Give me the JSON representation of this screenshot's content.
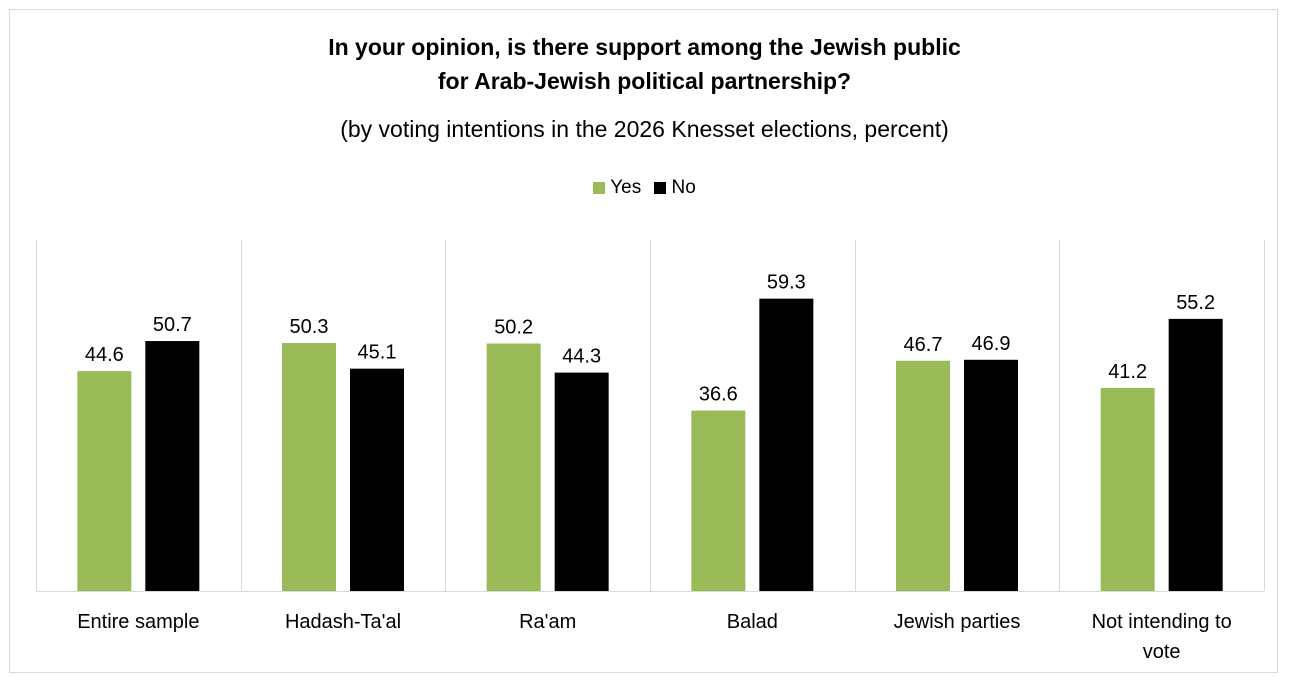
{
  "title_lines": [
    "In your opinion, is there support among the Jewish public",
    "for Arab-Jewish political partnership?"
  ],
  "subtitle": "(by voting intentions in the 2026 Knesset elections, percent)",
  "legend": [
    {
      "label": "Yes",
      "color": "#9bbb59"
    },
    {
      "label": "No",
      "color": "#000000"
    }
  ],
  "chart_data": {
    "type": "bar",
    "title": "In your opinion, is there support among the Jewish public for Arab-Jewish political partnership?",
    "subtitle": "(by voting intentions in the 2026 Knesset elections, percent)",
    "categories": [
      "Entire sample",
      "Hadash-Ta'al",
      "Ra'am",
      "Balad",
      "Jewish parties",
      "Not intending to vote"
    ],
    "series": [
      {
        "name": "Yes",
        "color": "#9bbb59",
        "values": [
          44.6,
          50.3,
          50.2,
          36.6,
          46.7,
          41.2
        ]
      },
      {
        "name": "No",
        "color": "#000000",
        "values": [
          50.7,
          45.1,
          44.3,
          59.3,
          46.9,
          55.2
        ]
      }
    ],
    "ylim": [
      0,
      70
    ],
    "grid": false,
    "category_separators": true,
    "data_labels": true,
    "legend_position": "top"
  }
}
